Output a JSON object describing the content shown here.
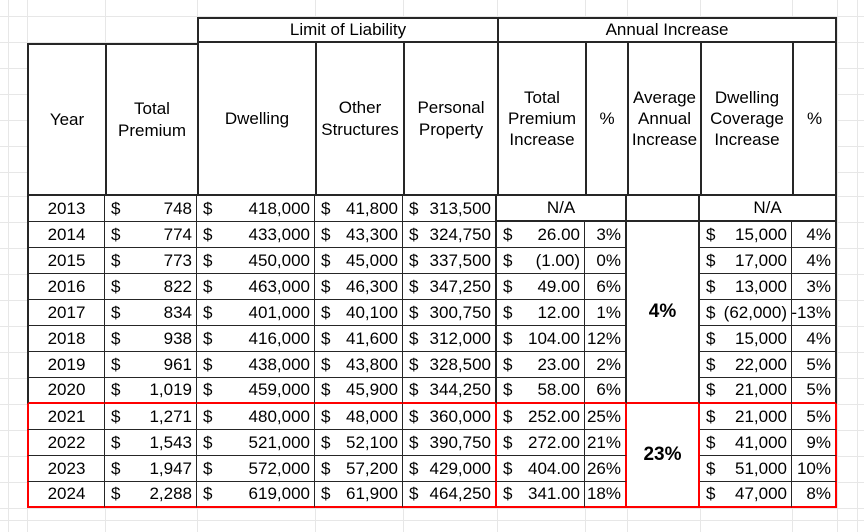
{
  "colors": {
    "border": "#262626",
    "highlight_box": "#ff0000",
    "gridline": "#e7e7e7",
    "cell_bg": "#ffffff"
  },
  "table": {
    "group_headers": {
      "limit_of_liability": "Limit of Liability",
      "annual_increase": "Annual Increase"
    },
    "columns": [
      "Year",
      "Total Premium",
      "Dwelling",
      "Other Structures",
      "Personal Property",
      "Total Premium Increase",
      "%",
      "Average Annual Increase",
      "Dwelling Coverage Increase",
      "%"
    ],
    "na_label": "N/A",
    "currency_symbol": "$",
    "avg_annual_groups": [
      {
        "label": "4%",
        "applies_to_years": "2014-2020"
      },
      {
        "label": "23%",
        "applies_to_years": "2021-2024"
      }
    ],
    "rows": [
      {
        "year": "2013",
        "total_premium": "748",
        "dwelling": "418,000",
        "other_structures": "41,800",
        "personal_property": "313,500",
        "premium_increase": null,
        "premium_increase_pct": null,
        "dwelling_increase": null,
        "dwelling_increase_pct": null,
        "highlighted": false
      },
      {
        "year": "2014",
        "total_premium": "774",
        "dwelling": "433,000",
        "other_structures": "43,300",
        "personal_property": "324,750",
        "premium_increase": "26.00",
        "premium_increase_pct": "3%",
        "dwelling_increase": "15,000",
        "dwelling_increase_pct": "4%",
        "highlighted": false
      },
      {
        "year": "2015",
        "total_premium": "773",
        "dwelling": "450,000",
        "other_structures": "45,000",
        "personal_property": "337,500",
        "premium_increase": "(1.00)",
        "premium_increase_pct": "0%",
        "dwelling_increase": "17,000",
        "dwelling_increase_pct": "4%",
        "highlighted": false
      },
      {
        "year": "2016",
        "total_premium": "822",
        "dwelling": "463,000",
        "other_structures": "46,300",
        "personal_property": "347,250",
        "premium_increase": "49.00",
        "premium_increase_pct": "6%",
        "dwelling_increase": "13,000",
        "dwelling_increase_pct": "3%",
        "highlighted": false
      },
      {
        "year": "2017",
        "total_premium": "834",
        "dwelling": "401,000",
        "other_structures": "40,100",
        "personal_property": "300,750",
        "premium_increase": "12.00",
        "premium_increase_pct": "1%",
        "dwelling_increase": "(62,000)",
        "dwelling_increase_pct": "-13%",
        "highlighted": false
      },
      {
        "year": "2018",
        "total_premium": "938",
        "dwelling": "416,000",
        "other_structures": "41,600",
        "personal_property": "312,000",
        "premium_increase": "104.00",
        "premium_increase_pct": "12%",
        "dwelling_increase": "15,000",
        "dwelling_increase_pct": "4%",
        "highlighted": false
      },
      {
        "year": "2019",
        "total_premium": "961",
        "dwelling": "438,000",
        "other_structures": "43,800",
        "personal_property": "328,500",
        "premium_increase": "23.00",
        "premium_increase_pct": "2%",
        "dwelling_increase": "22,000",
        "dwelling_increase_pct": "5%",
        "highlighted": false
      },
      {
        "year": "2020",
        "total_premium": "1,019",
        "dwelling": "459,000",
        "other_structures": "45,900",
        "personal_property": "344,250",
        "premium_increase": "58.00",
        "premium_increase_pct": "6%",
        "dwelling_increase": "21,000",
        "dwelling_increase_pct": "5%",
        "highlighted": false
      },
      {
        "year": "2021",
        "total_premium": "1,271",
        "dwelling": "480,000",
        "other_structures": "48,000",
        "personal_property": "360,000",
        "premium_increase": "252.00",
        "premium_increase_pct": "25%",
        "dwelling_increase": "21,000",
        "dwelling_increase_pct": "5%",
        "highlighted": true
      },
      {
        "year": "2022",
        "total_premium": "1,543",
        "dwelling": "521,000",
        "other_structures": "52,100",
        "personal_property": "390,750",
        "premium_increase": "272.00",
        "premium_increase_pct": "21%",
        "dwelling_increase": "41,000",
        "dwelling_increase_pct": "9%",
        "highlighted": true
      },
      {
        "year": "2023",
        "total_premium": "1,947",
        "dwelling": "572,000",
        "other_structures": "57,200",
        "personal_property": "429,000",
        "premium_increase": "404.00",
        "premium_increase_pct": "26%",
        "dwelling_increase": "51,000",
        "dwelling_increase_pct": "10%",
        "highlighted": true
      },
      {
        "year": "2024",
        "total_premium": "2,288",
        "dwelling": "619,000",
        "other_structures": "61,900",
        "personal_property": "464,250",
        "premium_increase": "341.00",
        "premium_increase_pct": "18%",
        "dwelling_increase": "47,000",
        "dwelling_increase_pct": "8%",
        "highlighted": true
      }
    ]
  }
}
